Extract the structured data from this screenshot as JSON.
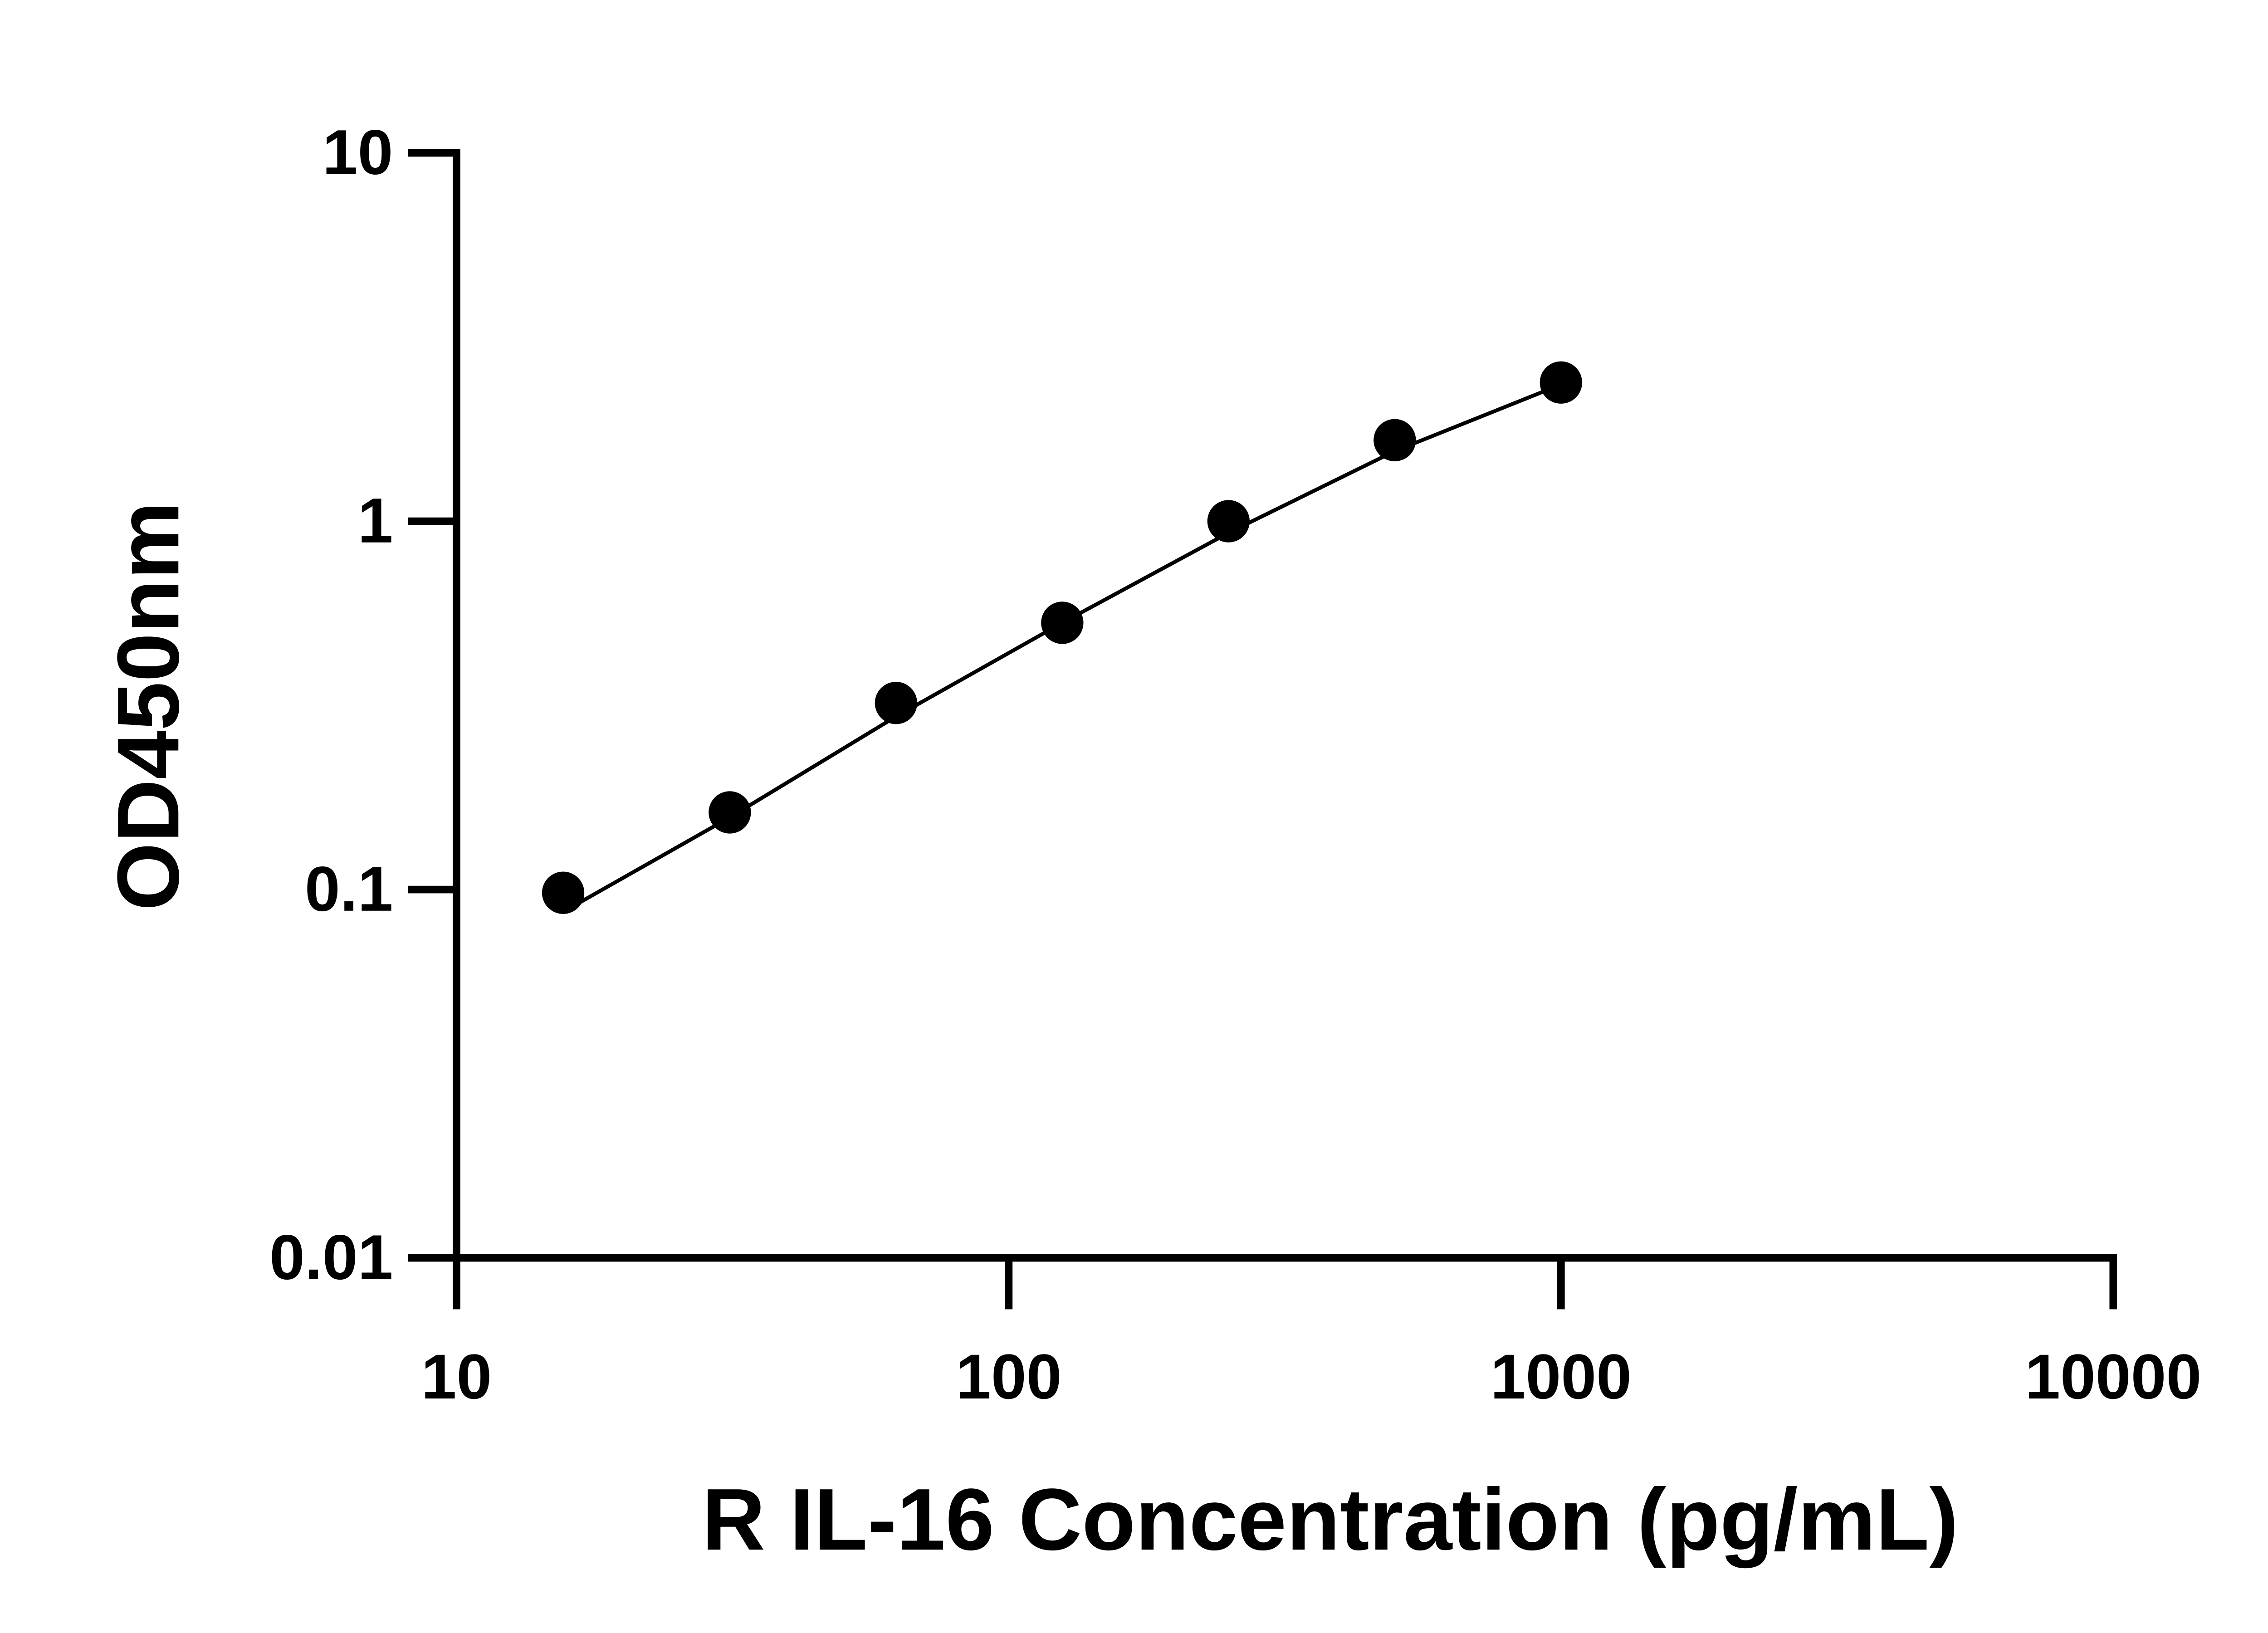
{
  "chart_data": {
    "type": "scatter",
    "x_label": "R IL-16 Concentration (pg/mL)",
    "y_label": "OD450nm",
    "x": [
      15.6,
      31.25,
      62.5,
      125,
      250,
      500,
      1000
    ],
    "values": [
      0.098,
      0.162,
      0.321,
      0.53,
      1.0,
      1.66,
      2.38
    ],
    "color": "#000000",
    "fit": {
      "x": [
        15.6,
        31.25,
        62.5,
        125,
        250,
        500,
        1000
      ],
      "values": [
        0.087,
        0.157,
        0.295,
        0.53,
        0.93,
        1.55,
        2.35
      ]
    },
    "xscale": "log",
    "yscale": "log",
    "xlim": [
      10,
      10000
    ],
    "ylim": [
      0.01,
      10
    ],
    "xticks": [
      10,
      100,
      1000,
      10000
    ],
    "yticks": [
      0.01,
      0.1,
      1,
      10
    ]
  }
}
